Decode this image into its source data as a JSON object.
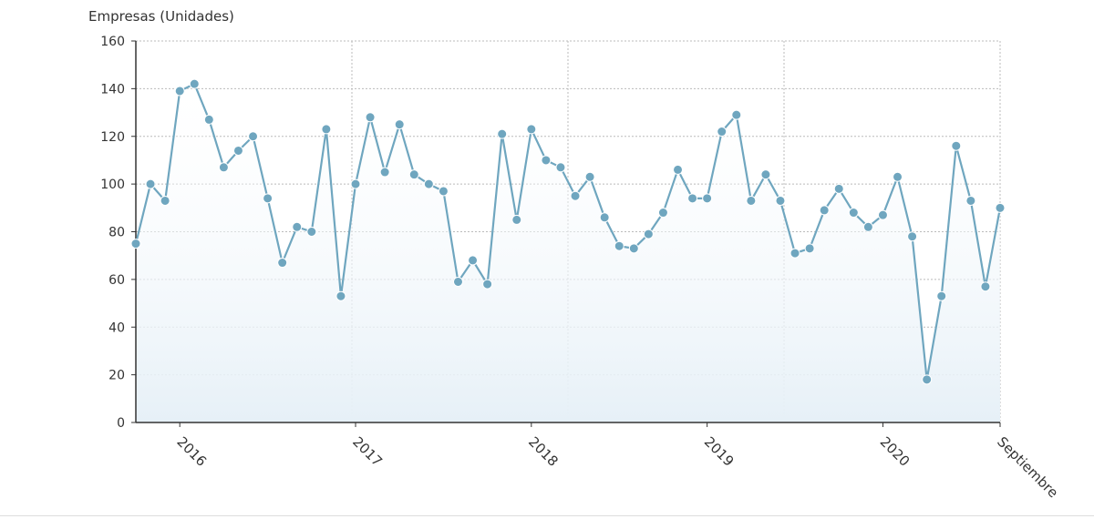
{
  "chart_data": {
    "type": "line",
    "title": "",
    "ylabel": "Empresas (Unidades)",
    "xlabel": "",
    "ylim": [
      0,
      160
    ],
    "yticks": [
      0,
      20,
      40,
      60,
      80,
      100,
      120,
      140,
      160
    ],
    "x_start": "2015-10",
    "x_end": "2020-09",
    "xtick_labels": [
      {
        "label": "2016",
        "index": 3
      },
      {
        "label": "2017",
        "index": 15
      },
      {
        "label": "2018",
        "index": 27
      },
      {
        "label": "2019",
        "index": 39
      },
      {
        "label": "2020",
        "index": 51
      },
      {
        "label": "Septiembre",
        "index": 59
      }
    ],
    "grid": true,
    "area_fill": true,
    "series": [
      {
        "color": "#6fa6bf",
        "values": [
          75,
          100,
          93,
          139,
          142,
          127,
          107,
          114,
          120,
          94,
          67,
          82,
          80,
          123,
          53,
          100,
          128,
          105,
          125,
          104,
          100,
          97,
          59,
          68,
          58,
          121,
          85,
          123,
          110,
          107,
          95,
          103,
          86,
          74,
          73,
          79,
          88,
          106,
          94,
          94,
          122,
          129,
          93,
          104,
          93,
          71,
          73,
          89,
          98,
          88,
          82,
          87,
          103,
          78,
          18,
          53,
          116,
          93,
          57,
          90
        ]
      }
    ]
  }
}
